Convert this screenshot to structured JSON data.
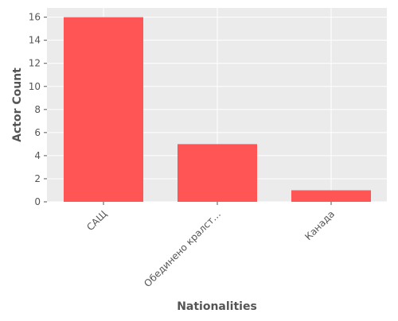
{
  "chart_data": {
    "type": "bar",
    "categories": [
      "САЩ",
      "Обединено кралст…",
      "Канада"
    ],
    "values": [
      16,
      5,
      1
    ],
    "xlabel": "Nationalities",
    "ylabel": "Actor Count",
    "ylim": [
      0,
      16.8
    ],
    "yticks": [
      0,
      2,
      4,
      6,
      8,
      10,
      12,
      14,
      16
    ],
    "grid": true,
    "legend": "none",
    "colors": {
      "bar": "#ff5555",
      "plot_background": "#ebebeb",
      "grid": "#ffffff",
      "text": "#555555"
    }
  }
}
